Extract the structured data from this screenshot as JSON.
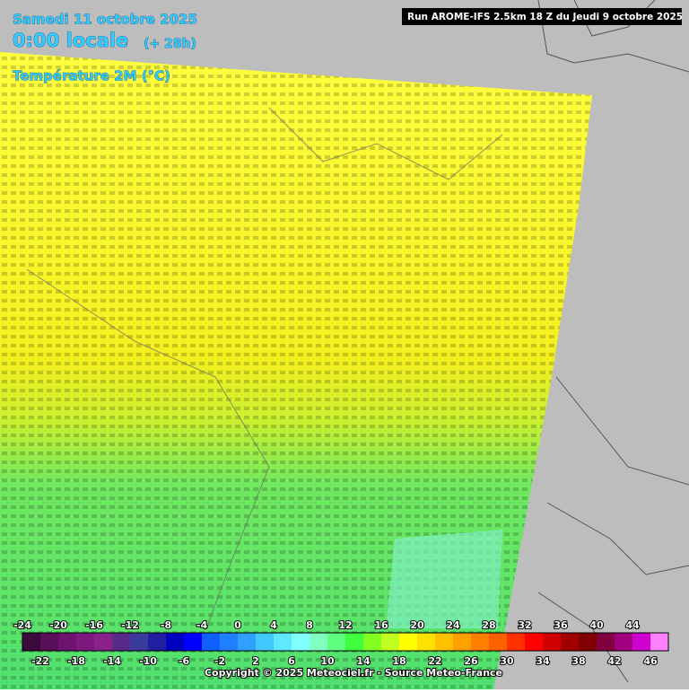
{
  "header": {
    "date": "Samedi 11 octobre 2025",
    "time": "0:00 locale",
    "offset": "(+ 28h)",
    "parameter": "Température 2M (°C)",
    "run": "Run AROME-IFS 2.5km 18 Z du Jeudi 9 octobre 2025"
  },
  "legend": {
    "labels_top": [
      -24,
      -20,
      -16,
      -12,
      -8,
      -4,
      0,
      4,
      8,
      12,
      16,
      20,
      24,
      28,
      32,
      36,
      40,
      44
    ],
    "labels_bottom": [
      -22,
      -18,
      -14,
      -10,
      -6,
      -2,
      2,
      6,
      10,
      14,
      18,
      22,
      26,
      30,
      34,
      38,
      42,
      46
    ],
    "colors": [
      "#3d0a3d",
      "#5a0f5a",
      "#6e1470",
      "#7d1a80",
      "#8a208a",
      "#5a2a8a",
      "#3a3a9a",
      "#2020a0",
      "#0000c0",
      "#0000ff",
      "#1060ff",
      "#2080ff",
      "#30a0ff",
      "#40c8ff",
      "#60e8ff",
      "#80ffff",
      "#80ffc0",
      "#60ff80",
      "#40ff40",
      "#80ff20",
      "#c0ff20",
      "#ffff00",
      "#ffe000",
      "#ffc000",
      "#ffa000",
      "#ff8000",
      "#ff6000",
      "#ff3000",
      "#ff0000",
      "#d00000",
      "#a00000",
      "#800000",
      "#800040",
      "#a00080",
      "#d000d0",
      "#ff80ff"
    ]
  },
  "footer": {
    "copyright": "Copyright © 2025 Meteociel.fr - Source Meteo-France"
  }
}
